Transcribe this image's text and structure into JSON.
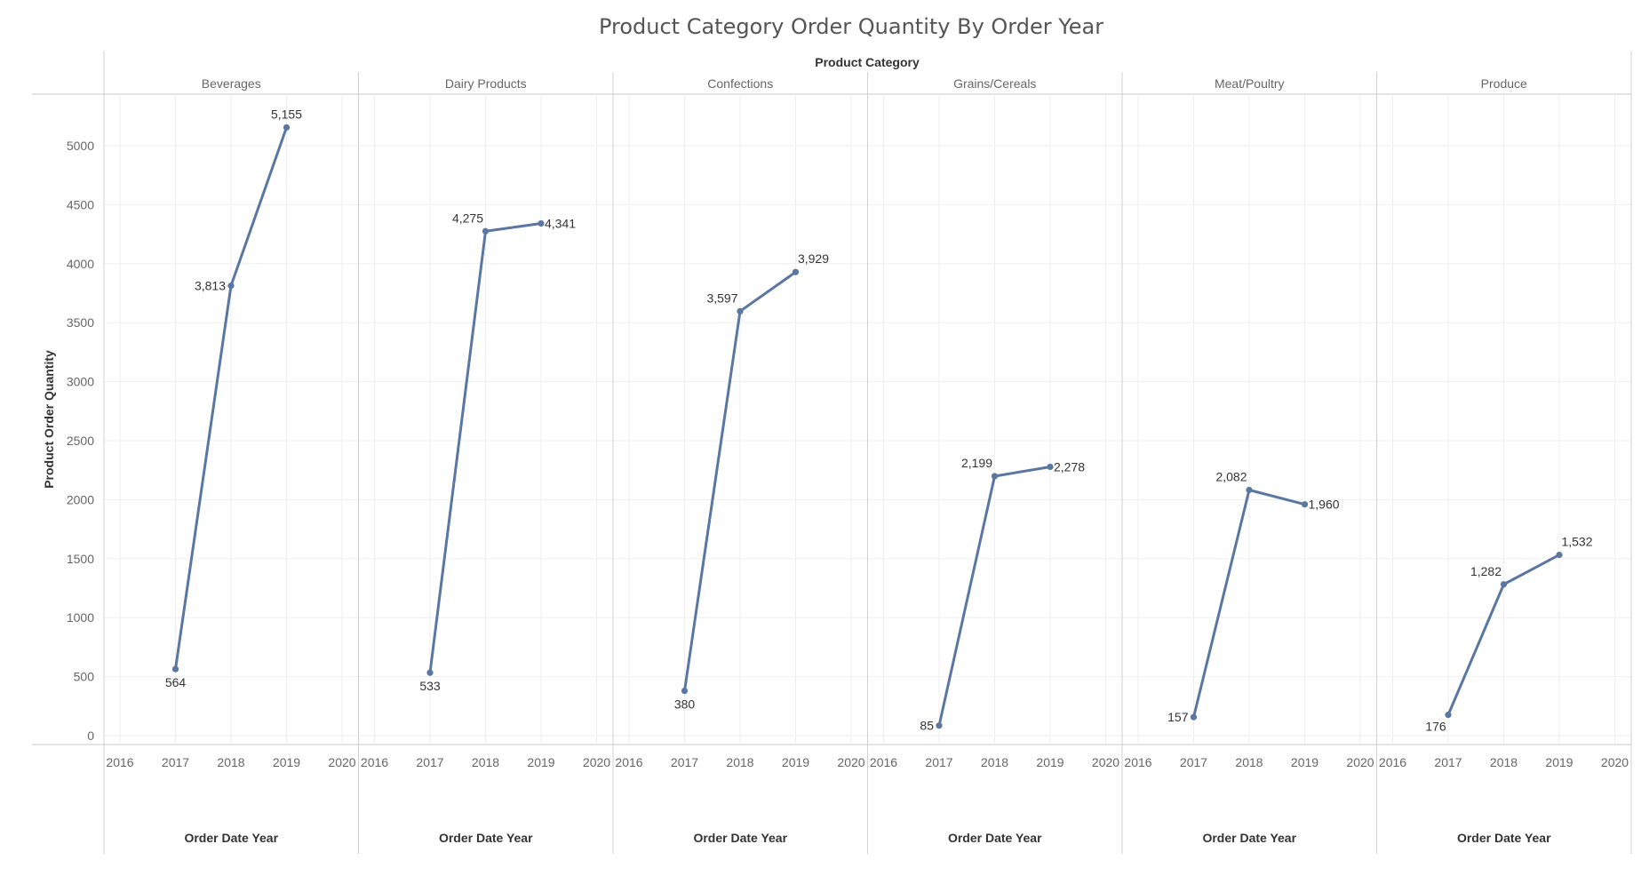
{
  "colors": {
    "line": "#5a76a3"
  },
  "chart_data": {
    "type": "line",
    "title": "Product Category Order Quantity By Order Year",
    "column_header": "Product Category",
    "ylabel": "Product Order Quantity",
    "xlabel": "Order Date Year",
    "ylim": [
      0,
      5300
    ],
    "yticks": [
      0,
      500,
      1000,
      1500,
      2000,
      2500,
      3000,
      3500,
      4000,
      4500,
      5000
    ],
    "xlim": [
      2016,
      2020
    ],
    "xticks": [
      2016,
      2017,
      2018,
      2019,
      2020
    ],
    "grid": true,
    "legend": "none",
    "panels": [
      {
        "name": "Beverages",
        "points": [
          {
            "x": 2017,
            "y": 564,
            "label": "564",
            "label_pos": "below"
          },
          {
            "x": 2018,
            "y": 3813,
            "label": "3,813",
            "label_pos": "left"
          },
          {
            "x": 2019,
            "y": 5155,
            "label": "5,155",
            "label_pos": "above"
          }
        ]
      },
      {
        "name": "Dairy Products",
        "points": [
          {
            "x": 2017,
            "y": 533,
            "label": "533",
            "label_pos": "below"
          },
          {
            "x": 2018,
            "y": 4275,
            "label": "4,275",
            "label_pos": "above-left"
          },
          {
            "x": 2019,
            "y": 4341,
            "label": "4,341",
            "label_pos": "right"
          }
        ]
      },
      {
        "name": "Confections",
        "points": [
          {
            "x": 2017,
            "y": 380,
            "label": "380",
            "label_pos": "below"
          },
          {
            "x": 2018,
            "y": 3597,
            "label": "3,597",
            "label_pos": "above-left"
          },
          {
            "x": 2019,
            "y": 3929,
            "label": "3,929",
            "label_pos": "above-right"
          }
        ]
      },
      {
        "name": "Grains/Cereals",
        "points": [
          {
            "x": 2017,
            "y": 85,
            "label": "85",
            "label_pos": "left"
          },
          {
            "x": 2018,
            "y": 2199,
            "label": "2,199",
            "label_pos": "above-left"
          },
          {
            "x": 2019,
            "y": 2278,
            "label": "2,278",
            "label_pos": "right"
          }
        ]
      },
      {
        "name": "Meat/Poultry",
        "points": [
          {
            "x": 2017,
            "y": 157,
            "label": "157",
            "label_pos": "left"
          },
          {
            "x": 2018,
            "y": 2082,
            "label": "2,082",
            "label_pos": "above-left"
          },
          {
            "x": 2019,
            "y": 1960,
            "label": "1,960",
            "label_pos": "right"
          }
        ]
      },
      {
        "name": "Produce",
        "points": [
          {
            "x": 2017,
            "y": 176,
            "label": "176",
            "label_pos": "below-left"
          },
          {
            "x": 2018,
            "y": 1282,
            "label": "1,282",
            "label_pos": "above-left"
          },
          {
            "x": 2019,
            "y": 1532,
            "label": "1,532",
            "label_pos": "above-right"
          }
        ]
      }
    ]
  }
}
